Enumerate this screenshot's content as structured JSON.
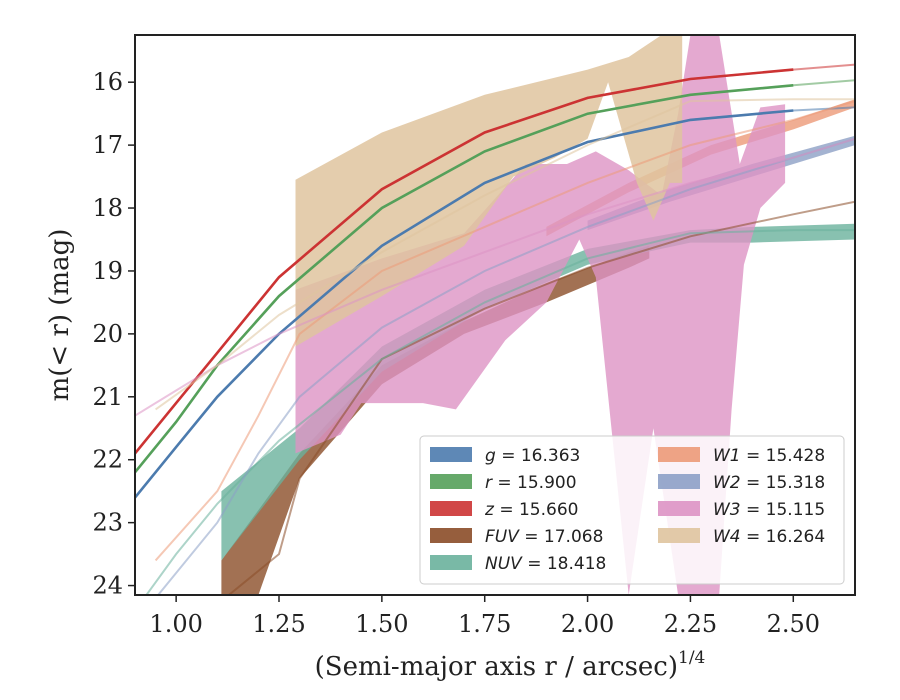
{
  "chart_data": {
    "type": "line",
    "xlabel": "(Semi-major axis r / arcsec)",
    "xlabel_sup": "1/4",
    "ylabel": "m(< r) (mag)",
    "xlim": [
      0.9,
      2.65
    ],
    "ylim": [
      24.15,
      15.25
    ],
    "y_inverted": true,
    "xticks": [
      "1.00",
      "1.25",
      "1.50",
      "1.75",
      "2.00",
      "2.25",
      "2.50"
    ],
    "xtick_values": [
      1.0,
      1.25,
      1.5,
      1.75,
      2.0,
      2.25,
      2.5
    ],
    "yticks": [
      "16",
      "17",
      "18",
      "19",
      "20",
      "21",
      "22",
      "23",
      "24"
    ],
    "ytick_values": [
      16,
      17,
      18,
      19,
      20,
      21,
      22,
      23,
      24
    ],
    "grid": false,
    "legend_position": "lower-right",
    "legend_columns": 2,
    "series": [
      {
        "name": "g",
        "value": "16.363",
        "color": "#4c7bae",
        "line": [
          [
            0.9,
            22.6
          ],
          [
            1.0,
            21.8
          ],
          [
            1.1,
            21.0
          ],
          [
            1.25,
            20.0
          ],
          [
            1.5,
            18.6
          ],
          [
            1.75,
            17.6
          ],
          [
            2.0,
            16.95
          ],
          [
            2.25,
            16.6
          ],
          [
            2.5,
            16.45
          ],
          [
            2.65,
            16.4
          ]
        ],
        "end_x": 2.55
      },
      {
        "name": "r",
        "value": "15.900",
        "color": "#55a05a",
        "line": [
          [
            0.9,
            22.2
          ],
          [
            1.0,
            21.4
          ],
          [
            1.1,
            20.5
          ],
          [
            1.25,
            19.4
          ],
          [
            1.5,
            18.0
          ],
          [
            1.75,
            17.1
          ],
          [
            2.0,
            16.5
          ],
          [
            2.25,
            16.2
          ],
          [
            2.5,
            16.05
          ],
          [
            2.65,
            15.97
          ]
        ],
        "end_x": 2.55
      },
      {
        "name": "z",
        "value": "15.660",
        "color": "#cc3333",
        "line": [
          [
            0.9,
            21.9
          ],
          [
            1.0,
            21.1
          ],
          [
            1.1,
            20.3
          ],
          [
            1.25,
            19.1
          ],
          [
            1.5,
            17.7
          ],
          [
            1.75,
            16.8
          ],
          [
            2.0,
            16.25
          ],
          [
            2.25,
            15.95
          ],
          [
            2.5,
            15.8
          ],
          [
            2.65,
            15.72
          ]
        ],
        "end_x": 2.55
      },
      {
        "name": "FUV",
        "value": "17.068",
        "color": "#8b4d28",
        "line": [
          [
            1.1,
            24.3
          ],
          [
            1.25,
            23.5
          ],
          [
            1.3,
            22.3
          ],
          [
            1.5,
            20.4
          ],
          [
            1.75,
            19.6
          ],
          [
            2.0,
            18.95
          ],
          [
            2.25,
            18.45
          ],
          [
            2.5,
            18.1
          ],
          [
            2.65,
            17.9
          ]
        ],
        "band_upper": [
          [
            1.11,
            23.6
          ],
          [
            1.2,
            22.8
          ],
          [
            1.3,
            21.9
          ],
          [
            1.5,
            20.5
          ],
          [
            1.7,
            19.8
          ],
          [
            1.9,
            19.2
          ],
          [
            2.1,
            18.7
          ],
          [
            2.15,
            18.6
          ]
        ],
        "band_lower": [
          [
            1.11,
            24.15
          ],
          [
            1.2,
            24.15
          ],
          [
            1.3,
            22.3
          ],
          [
            1.5,
            20.8
          ],
          [
            1.7,
            20.0
          ],
          [
            1.9,
            19.5
          ],
          [
            2.1,
            18.95
          ],
          [
            2.15,
            18.8
          ]
        ]
      },
      {
        "name": "NUV",
        "value": "18.418",
        "color": "#6ab19c",
        "line": [
          [
            0.9,
            24.4
          ],
          [
            1.0,
            23.5
          ],
          [
            1.1,
            22.7
          ],
          [
            1.25,
            21.7
          ],
          [
            1.5,
            20.4
          ],
          [
            1.75,
            19.5
          ],
          [
            2.0,
            18.8
          ],
          [
            2.25,
            18.4
          ],
          [
            2.5,
            18.35
          ],
          [
            2.65,
            18.35
          ]
        ],
        "band_upper": [
          [
            1.11,
            22.5
          ],
          [
            1.3,
            21.5
          ],
          [
            1.5,
            20.2
          ],
          [
            1.75,
            19.3
          ],
          [
            2.0,
            18.65
          ],
          [
            2.25,
            18.35
          ],
          [
            2.4,
            18.3
          ],
          [
            2.65,
            18.25
          ]
        ],
        "band_lower": [
          [
            1.11,
            23.6
          ],
          [
            1.3,
            22.0
          ],
          [
            1.5,
            20.6
          ],
          [
            1.75,
            19.6
          ],
          [
            2.0,
            18.9
          ],
          [
            2.25,
            18.55
          ],
          [
            2.4,
            18.55
          ],
          [
            2.65,
            18.5
          ]
        ]
      },
      {
        "name": "W1",
        "value": "15.428",
        "color": "#ec9a78",
        "line": [
          [
            0.95,
            23.6
          ],
          [
            1.1,
            22.5
          ],
          [
            1.2,
            21.3
          ],
          [
            1.3,
            20.0
          ],
          [
            1.5,
            19.0
          ],
          [
            1.75,
            18.3
          ],
          [
            2.0,
            17.6
          ],
          [
            2.25,
            17.0
          ],
          [
            2.5,
            16.6
          ],
          [
            2.65,
            16.3
          ]
        ],
        "band_upper": [
          [
            1.9,
            18.3
          ],
          [
            2.1,
            17.6
          ],
          [
            2.3,
            17.0
          ],
          [
            2.5,
            16.6
          ],
          [
            2.65,
            16.27
          ]
        ],
        "band_lower": [
          [
            1.9,
            18.45
          ],
          [
            2.1,
            17.75
          ],
          [
            2.3,
            17.15
          ],
          [
            2.5,
            16.75
          ],
          [
            2.65,
            16.4
          ]
        ]
      },
      {
        "name": "W2",
        "value": "15.318",
        "color": "#8da0c6",
        "line": [
          [
            0.95,
            24.2
          ],
          [
            1.1,
            23.0
          ],
          [
            1.2,
            21.9
          ],
          [
            1.3,
            21.0
          ],
          [
            1.5,
            19.9
          ],
          [
            1.75,
            19.0
          ],
          [
            2.0,
            18.3
          ],
          [
            2.25,
            17.7
          ],
          [
            2.5,
            17.2
          ],
          [
            2.65,
            16.9
          ]
        ],
        "band_upper": [
          [
            2.0,
            18.2
          ],
          [
            2.2,
            17.7
          ],
          [
            2.4,
            17.3
          ],
          [
            2.65,
            16.85
          ]
        ],
        "band_lower": [
          [
            2.0,
            18.35
          ],
          [
            2.2,
            17.9
          ],
          [
            2.4,
            17.5
          ],
          [
            2.65,
            17.0
          ]
        ]
      },
      {
        "name": "W3",
        "value": "15.115",
        "color": "#dd94c4",
        "line": [
          [
            0.9,
            21.3
          ],
          [
            1.0,
            20.9
          ],
          [
            1.1,
            20.5
          ],
          [
            1.25,
            20.0
          ],
          [
            1.5,
            19.3
          ],
          [
            1.75,
            18.7
          ],
          [
            2.0,
            18.1
          ],
          [
            2.25,
            17.6
          ],
          [
            2.5,
            17.2
          ],
          [
            2.65,
            16.9
          ]
        ],
        "band_upper": [
          [
            1.29,
            19.3
          ],
          [
            1.5,
            18.8
          ],
          [
            1.7,
            18.4
          ],
          [
            1.85,
            17.3
          ],
          [
            1.95,
            17.3
          ],
          [
            2.02,
            17.1
          ],
          [
            2.1,
            17.4
          ],
          [
            2.18,
            17.8
          ],
          [
            2.22,
            16.5
          ],
          [
            2.25,
            15.25
          ],
          [
            2.32,
            15.25
          ],
          [
            2.37,
            17.3
          ],
          [
            2.42,
            16.4
          ],
          [
            2.48,
            16.35
          ],
          [
            2.48,
            17.3
          ]
        ],
        "band_lower": [
          [
            1.29,
            21.9
          ],
          [
            1.4,
            21.6
          ],
          [
            1.45,
            21.1
          ],
          [
            1.6,
            21.1
          ],
          [
            1.68,
            21.2
          ],
          [
            1.8,
            20.1
          ],
          [
            1.9,
            19.5
          ],
          [
            1.98,
            18.5
          ],
          [
            2.02,
            19.1
          ],
          [
            2.1,
            24.15
          ],
          [
            2.16,
            21.5
          ],
          [
            2.22,
            24.15
          ],
          [
            2.32,
            24.15
          ],
          [
            2.35,
            21.2
          ],
          [
            2.38,
            18.9
          ],
          [
            2.42,
            18.0
          ],
          [
            2.48,
            17.6
          ]
        ]
      },
      {
        "name": "W4",
        "value": "16.264",
        "color": "#dfc49f",
        "line": [
          [
            0.95,
            21.2
          ],
          [
            1.1,
            20.5
          ],
          [
            1.25,
            19.7
          ],
          [
            1.5,
            18.7
          ],
          [
            1.75,
            17.8
          ],
          [
            2.0,
            17.0
          ],
          [
            2.25,
            16.3
          ],
          [
            2.5,
            16.27
          ],
          [
            2.65,
            16.27
          ]
        ],
        "band_upper": [
          [
            1.29,
            17.55
          ],
          [
            1.5,
            16.8
          ],
          [
            1.75,
            16.2
          ],
          [
            2.0,
            15.8
          ],
          [
            2.1,
            15.6
          ],
          [
            2.18,
            15.25
          ],
          [
            2.23,
            15.25
          ]
        ],
        "band_lower": [
          [
            1.29,
            20.2
          ],
          [
            1.5,
            19.4
          ],
          [
            1.7,
            18.6
          ],
          [
            1.82,
            17.5
          ],
          [
            1.92,
            17.2
          ],
          [
            2.0,
            16.9
          ],
          [
            2.05,
            16.0
          ],
          [
            2.12,
            17.6
          ],
          [
            2.16,
            18.2
          ],
          [
            2.2,
            17.6
          ],
          [
            2.23,
            17.6
          ]
        ]
      }
    ]
  }
}
